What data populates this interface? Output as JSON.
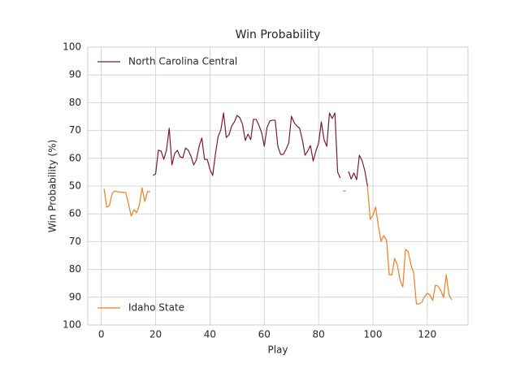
{
  "chart_data": {
    "type": "line",
    "title": "Win Probability",
    "xlabel": "Play",
    "ylabel": "Win Probability (%)",
    "x": [
      1,
      2,
      3,
      4,
      5,
      6,
      7,
      8,
      9,
      10,
      11,
      12,
      13,
      14,
      15,
      16,
      17,
      18,
      19,
      20,
      21,
      22,
      23,
      24,
      25,
      26,
      27,
      28,
      29,
      30,
      31,
      32,
      33,
      34,
      35,
      36,
      37,
      38,
      39,
      40,
      41,
      42,
      43,
      44,
      45,
      46,
      47,
      48,
      49,
      50,
      51,
      52,
      53,
      54,
      55,
      56,
      57,
      58,
      59,
      60,
      61,
      62,
      63,
      64,
      65,
      66,
      67,
      68,
      69,
      70,
      71,
      72,
      73,
      74,
      75,
      76,
      77,
      78,
      79,
      80,
      81,
      82,
      83,
      84,
      85,
      86,
      87,
      88,
      89,
      90,
      91,
      92,
      93,
      94,
      95,
      96,
      97,
      98,
      99,
      100,
      101,
      102,
      103,
      104,
      105,
      106,
      107,
      108,
      109,
      110,
      111,
      112,
      113,
      114,
      115,
      116,
      117,
      118,
      119,
      120,
      121,
      122,
      123,
      124,
      125,
      126,
      127,
      128,
      129
    ],
    "series": [
      {
        "name": "North Carolina Central",
        "color": "#7b1c2e",
        "legend": "upper left",
        "values": [
          null,
          null,
          null,
          null,
          null,
          null,
          null,
          null,
          null,
          null,
          null,
          null,
          null,
          null,
          null,
          null,
          null,
          null,
          53.8,
          54.4,
          62.9,
          62.6,
          59.6,
          63.0,
          70.8,
          57.6,
          61.7,
          62.9,
          60.5,
          60.2,
          63.7,
          62.9,
          60.8,
          57.6,
          59.4,
          64.3,
          67.3,
          59.6,
          59.6,
          56.0,
          53.8,
          61.4,
          67.8,
          70.2,
          76.3,
          67.5,
          68.4,
          71.6,
          73.1,
          75.4,
          74.6,
          72.2,
          66.4,
          68.7,
          66.7,
          74.0,
          74.0,
          71.9,
          69.3,
          64.3,
          71.0,
          73.4,
          73.7,
          73.7,
          64.3,
          61.4,
          61.4,
          63.2,
          65.5,
          75.1,
          72.8,
          71.6,
          70.8,
          66.7,
          61.1,
          62.6,
          64.6,
          59.0,
          62.6,
          65.5,
          73.1,
          66.7,
          64.3,
          76.3,
          74.3,
          76.3,
          55.0,
          52.9,
          null,
          null,
          55.3,
          52.6,
          54.7,
          52.3,
          61.1,
          59.1,
          55.6,
          50.0,
          null,
          null,
          null,
          null,
          null,
          null,
          null,
          null,
          null,
          null,
          null,
          null,
          null,
          null,
          null,
          null,
          null,
          null,
          null,
          null,
          null,
          null,
          null,
          null,
          null,
          null,
          null,
          null,
          null,
          null,
          null
        ]
      },
      {
        "name": "Idaho State",
        "color": "#f07f1e",
        "legend": "lower left",
        "values": [
          49.0,
          42.4,
          43.0,
          47.4,
          48.2,
          47.9,
          47.9,
          47.7,
          47.7,
          43.6,
          39.2,
          41.5,
          40.4,
          43.0,
          49.4,
          44.4,
          48.0,
          48.0,
          null,
          null,
          null,
          null,
          null,
          null,
          null,
          null,
          null,
          null,
          null,
          null,
          null,
          null,
          null,
          null,
          null,
          null,
          null,
          null,
          null,
          null,
          null,
          null,
          null,
          null,
          null,
          null,
          null,
          null,
          null,
          null,
          null,
          null,
          null,
          null,
          null,
          null,
          null,
          null,
          null,
          null,
          null,
          null,
          null,
          null,
          null,
          null,
          null,
          null,
          null,
          null,
          null,
          null,
          null,
          null,
          null,
          null,
          null,
          null,
          null,
          null,
          null,
          null,
          null,
          null,
          null,
          null,
          null,
          null,
          48.2,
          48.2,
          null,
          null,
          null,
          null,
          null,
          null,
          null,
          50.0,
          38.0,
          39.5,
          42.4,
          35.7,
          30.1,
          32.2,
          30.7,
          18.1,
          18.1,
          24.0,
          21.6,
          16.1,
          13.7,
          27.2,
          26.3,
          21.6,
          18.7,
          7.6,
          7.6,
          8.2,
          10.2,
          11.4,
          10.8,
          8.8,
          14.3,
          14.0,
          12.3,
          9.9,
          18.1,
          10.8,
          9.1
        ]
      }
    ],
    "xlim": [
      -5,
      135
    ],
    "xticks": [
      0,
      20,
      40,
      60,
      80,
      100,
      120
    ],
    "ylim": [
      0,
      100
    ],
    "yticks": [
      100,
      90,
      80,
      70,
      60,
      50,
      {
        "value": 40,
        "label": "60"
      },
      {
        "value": 30,
        "label": "70"
      },
      {
        "value": 20,
        "label": "80"
      },
      {
        "value": 10,
        "label": "90"
      },
      {
        "value": 0,
        "label": "100"
      }
    ],
    "grid": true
  }
}
